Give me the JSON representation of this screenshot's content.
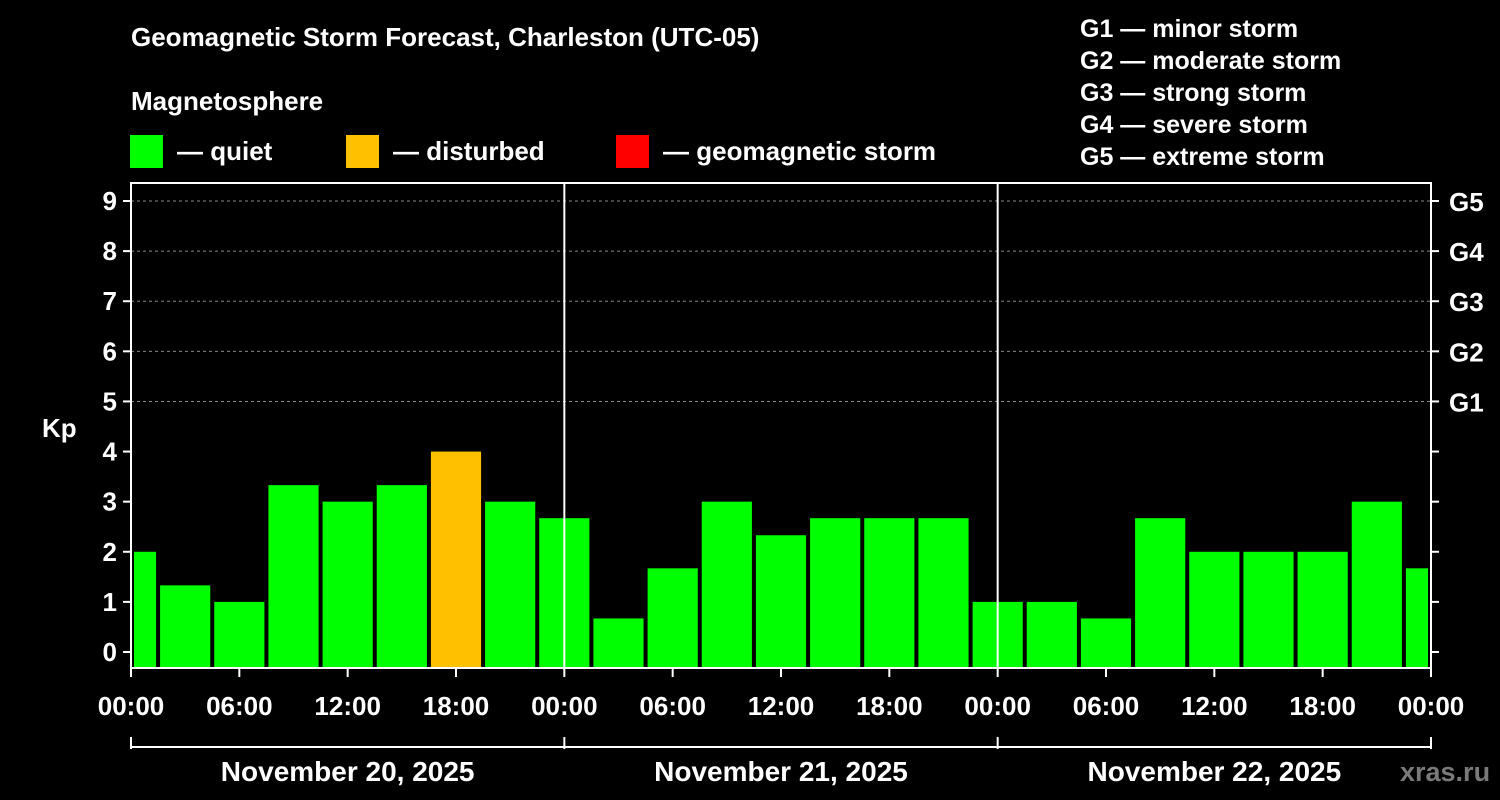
{
  "title": "Geomagnetic Storm Forecast, Charleston (UTC-05)",
  "magnetosphere_label": "Magnetosphere",
  "legend": [
    {
      "label": "— quiet",
      "color": "#00ff00"
    },
    {
      "label": "— disturbed",
      "color": "#ffc000"
    },
    {
      "label": "— geomagnetic storm",
      "color": "#ff0000"
    }
  ],
  "g_scale": [
    "G1 — minor storm",
    "G2 — moderate storm",
    "G3 — strong storm",
    "G4 — severe storm",
    "G5 — extreme storm"
  ],
  "watermark": "xras.ru",
  "chart_data": {
    "type": "bar",
    "ylabel": "Kp",
    "ylim": [
      0,
      9
    ],
    "yticks": [
      "0",
      "1",
      "2",
      "3",
      "4",
      "5",
      "6",
      "7",
      "8",
      "9"
    ],
    "right_axis_labels": [
      {
        "kp": 5,
        "label": "G1"
      },
      {
        "kp": 6,
        "label": "G2"
      },
      {
        "kp": 7,
        "label": "G3"
      },
      {
        "kp": 8,
        "label": "G4"
      },
      {
        "kp": 9,
        "label": "G5"
      }
    ],
    "xtick_labels": [
      "00:00",
      "06:00",
      "12:00",
      "18:00",
      "00:00",
      "06:00",
      "12:00",
      "18:00",
      "00:00",
      "06:00",
      "12:00",
      "18:00",
      "00:00"
    ],
    "days": [
      "November 20, 2025",
      "November 21, 2025",
      "November 22, 2025"
    ],
    "bar_interval_hours": 3,
    "values": [
      2.0,
      1.33,
      1.0,
      3.33,
      3.0,
      3.33,
      4.0,
      3.0,
      2.67,
      0.67,
      1.67,
      3.0,
      2.33,
      2.67,
      2.67,
      2.67,
      1.0,
      1.0,
      0.67,
      2.67,
      2.0,
      2.0,
      2.0,
      3.0,
      1.67
    ],
    "colors": {
      "quiet": "#00ff00",
      "disturbed": "#ffc000",
      "storm": "#ff0000"
    },
    "thresholds": {
      "disturbed": 4,
      "storm": 5
    }
  }
}
